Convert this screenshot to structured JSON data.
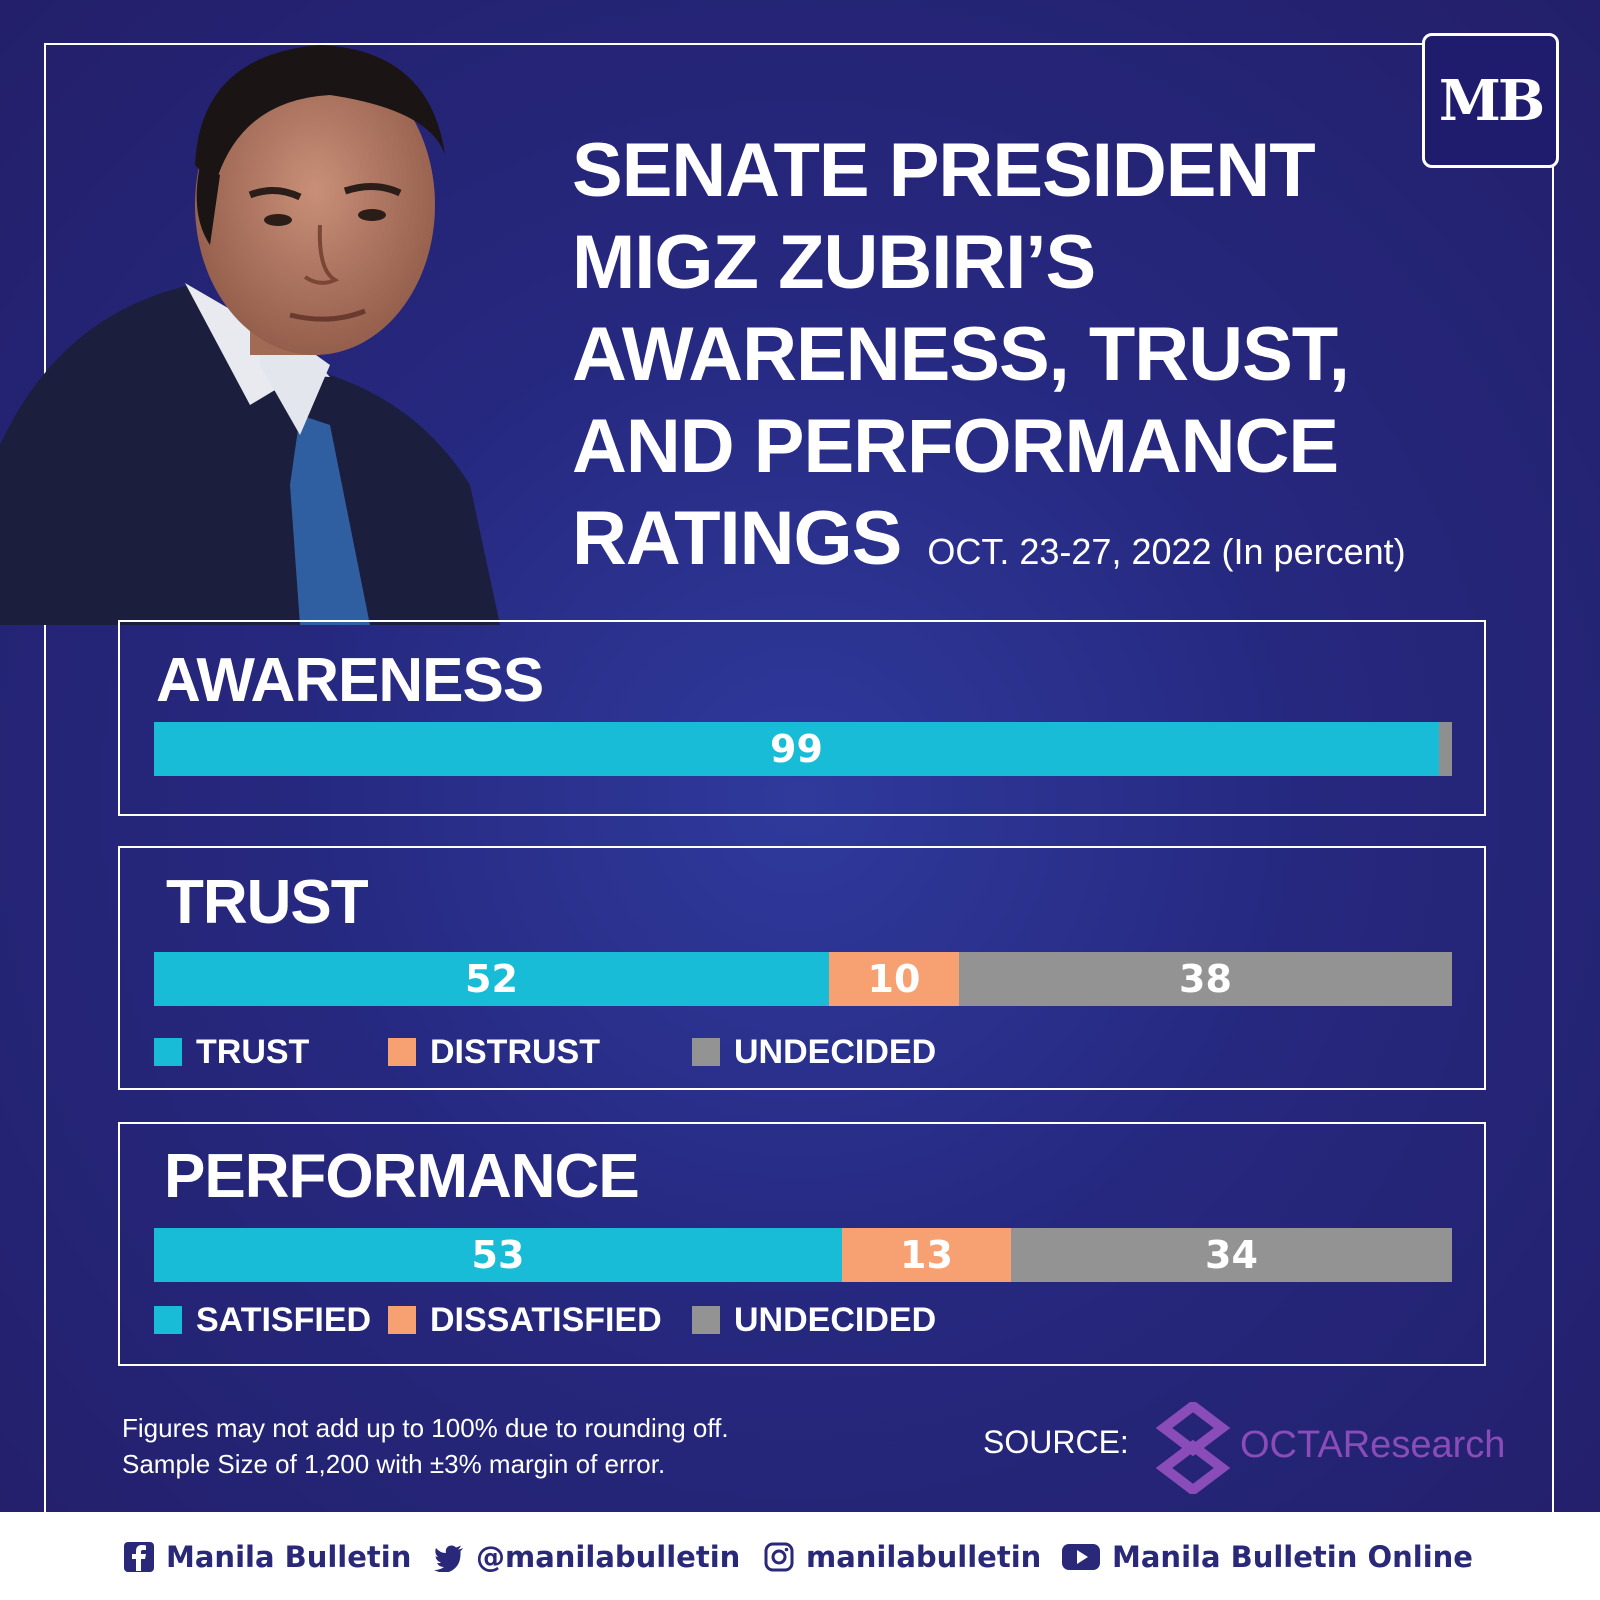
{
  "brand": {
    "logo_text": "MB"
  },
  "header": {
    "title_lines": [
      "SENATE PRESIDENT",
      "MIGZ ZUBIRI’S",
      "AWARENESS, TRUST,",
      "AND PERFORMANCE",
      "RATINGS"
    ],
    "subtitle": "OCT. 23-27, 2022 (In percent)"
  },
  "colors": {
    "positive": "#19bcd6",
    "negative": "#f7a071",
    "undecided": "#939393",
    "awareness_rest": "#8f8f8f"
  },
  "chart_data": [
    {
      "type": "bar",
      "title": "AWARENESS",
      "stacked": true,
      "series": [
        {
          "value": 99,
          "label": "99",
          "color": "#19bcd6"
        },
        {
          "value": 1,
          "label": "",
          "color": "#8f8f8f"
        }
      ],
      "xlim": [
        0,
        100
      ]
    },
    {
      "type": "bar",
      "title": "TRUST",
      "stacked": true,
      "series": [
        {
          "name": "TRUST",
          "value": 52,
          "label": "52",
          "color": "#19bcd6"
        },
        {
          "name": "DISTRUST",
          "value": 10,
          "label": "10",
          "color": "#f7a071"
        },
        {
          "name": "UNDECIDED",
          "value": 38,
          "label": "38",
          "color": "#939393"
        }
      ],
      "xlim": [
        0,
        100
      ],
      "legend": "bottom"
    },
    {
      "type": "bar",
      "title": "PERFORMANCE",
      "stacked": true,
      "series": [
        {
          "name": "SATISFIED",
          "value": 53,
          "label": "53",
          "color": "#19bcd6"
        },
        {
          "name": "DISSATISFIED",
          "value": 13,
          "label": "13",
          "color": "#f7a071"
        },
        {
          "name": "UNDECIDED",
          "value": 34,
          "label": "34",
          "color": "#939393"
        }
      ],
      "xlim": [
        0,
        100
      ],
      "legend": "bottom"
    }
  ],
  "notes": {
    "line1": "Figures may not add up to 100% due to rounding off.",
    "line2": "Sample Size of 1,200 with ±3% margin of error."
  },
  "source": {
    "label": "SOURCE:",
    "org": "OCTAResearch"
  },
  "footer": {
    "facebook": "Manila Bulletin",
    "twitter": "@manilabulletin",
    "instagram": "manilabulletin",
    "youtube": "Manila Bulletin Online"
  }
}
